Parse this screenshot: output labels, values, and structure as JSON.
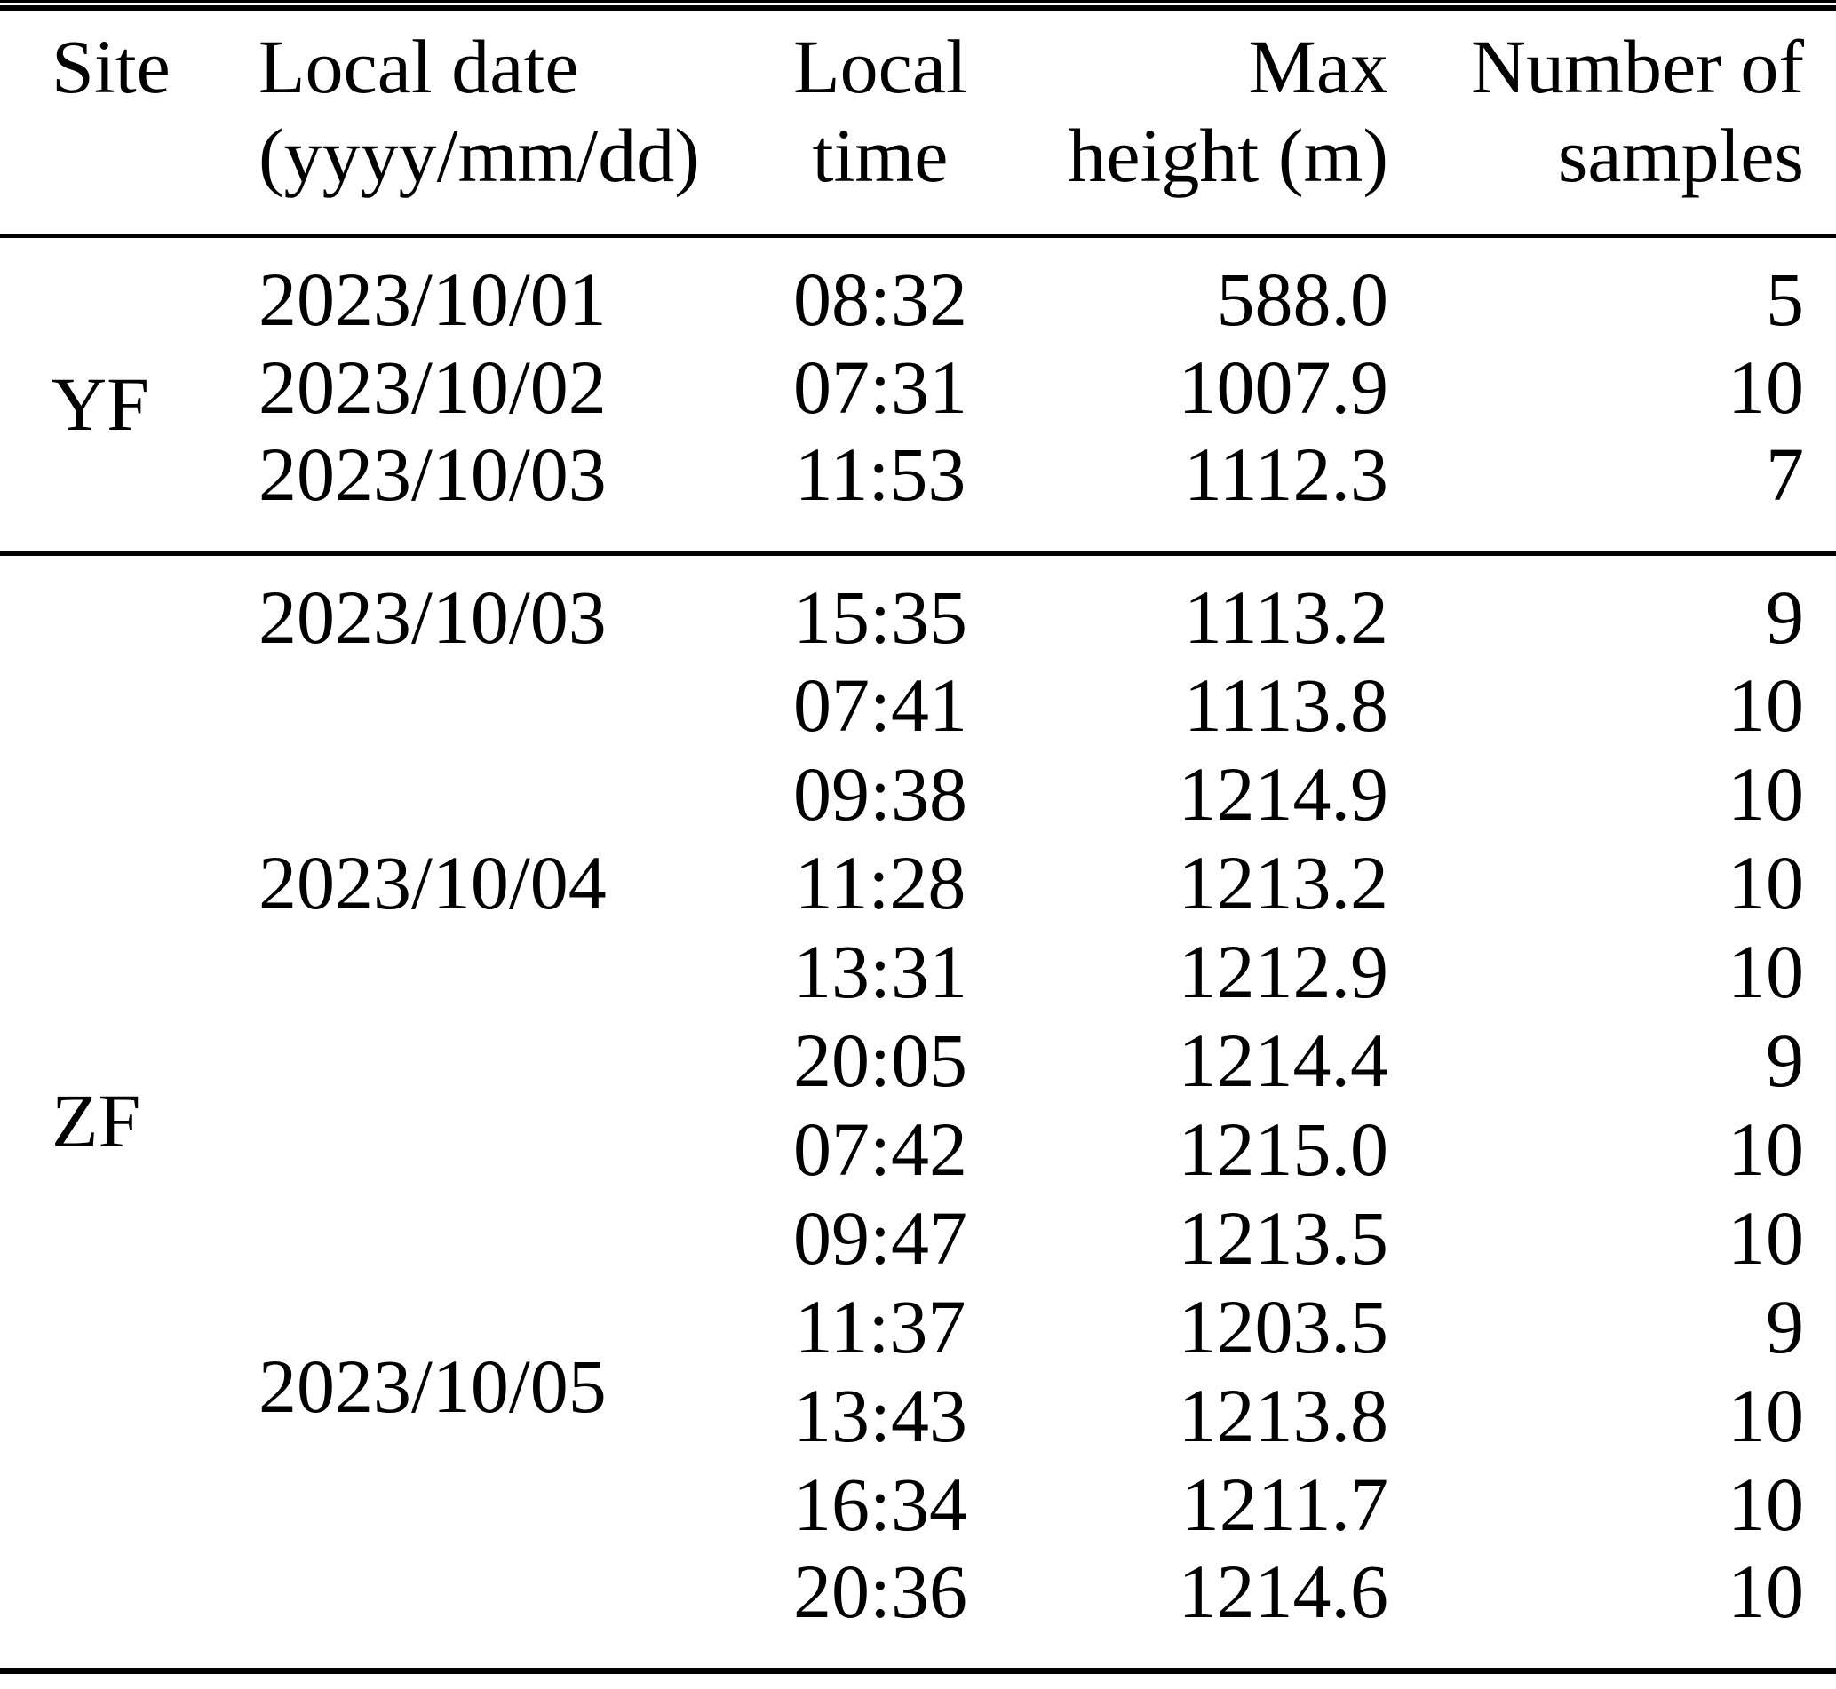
{
  "colors": {
    "background": "#ffffff",
    "text": "#000000",
    "rule": "#000000"
  },
  "table": {
    "headers": [
      {
        "key": "site",
        "line1": "Site",
        "line2": ""
      },
      {
        "key": "date",
        "line1": "Local date",
        "line2": "(yyyy/mm/dd)"
      },
      {
        "key": "time",
        "line1": "Local",
        "line2": "time"
      },
      {
        "key": "height",
        "line1": "Max",
        "line2": "height (m)"
      },
      {
        "key": "samples",
        "line1": "Number of",
        "line2": "samples"
      }
    ],
    "groups": [
      {
        "site": "YF",
        "date_groups": [
          {
            "date": "2023/10/01",
            "rows": [
              {
                "time": "08:32",
                "max_height_m": "588.0",
                "samples": "5"
              }
            ]
          },
          {
            "date": "2023/10/02",
            "rows": [
              {
                "time": "07:31",
                "max_height_m": "1007.9",
                "samples": "10"
              }
            ]
          },
          {
            "date": "2023/10/03",
            "rows": [
              {
                "time": "11:53",
                "max_height_m": "1112.3",
                "samples": "7"
              }
            ]
          }
        ]
      },
      {
        "site": "ZF",
        "date_groups": [
          {
            "date": "2023/10/03",
            "rows": [
              {
                "time": "15:35",
                "max_height_m": "1113.2",
                "samples": "9"
              }
            ]
          },
          {
            "date": "2023/10/04",
            "rows": [
              {
                "time": "07:41",
                "max_height_m": "1113.8",
                "samples": "10"
              },
              {
                "time": "09:38",
                "max_height_m": "1214.9",
                "samples": "10"
              },
              {
                "time": "11:28",
                "max_height_m": "1213.2",
                "samples": "10"
              },
              {
                "time": "13:31",
                "max_height_m": "1212.9",
                "samples": "10"
              },
              {
                "time": "20:05",
                "max_height_m": "1214.4",
                "samples": "9"
              }
            ]
          },
          {
            "date": "2023/10/05",
            "rows": [
              {
                "time": "07:42",
                "max_height_m": "1215.0",
                "samples": "10"
              },
              {
                "time": "09:47",
                "max_height_m": "1213.5",
                "samples": "10"
              },
              {
                "time": "11:37",
                "max_height_m": "1203.5",
                "samples": "9"
              },
              {
                "time": "13:43",
                "max_height_m": "1213.8",
                "samples": "10"
              },
              {
                "time": "16:34",
                "max_height_m": "1211.7",
                "samples": "10"
              },
              {
                "time": "20:36",
                "max_height_m": "1214.6",
                "samples": "10"
              }
            ]
          }
        ]
      }
    ]
  }
}
